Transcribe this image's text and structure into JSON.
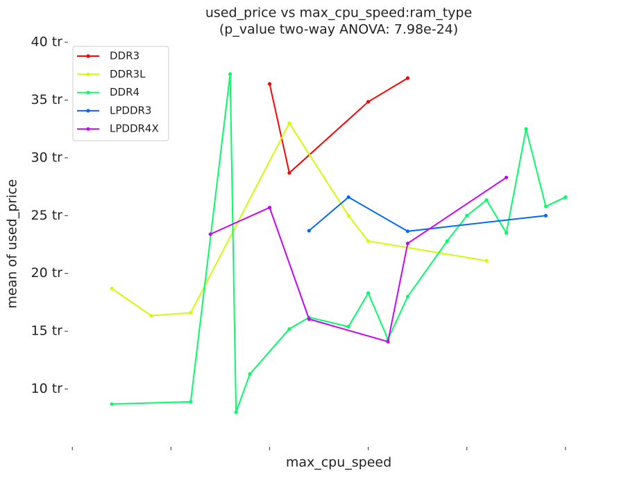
{
  "chart_data": {
    "type": "line",
    "title": "used_price vs max_cpu_speed:ram_type",
    "subtitle": "(p_value two-way ANOVA: 7.98e-24)",
    "x_label": "max_cpu_speed",
    "y_label": "mean of used_price",
    "xlim": [
      -0.1,
      5.1
    ],
    "xticks": [
      0,
      1,
      2,
      3,
      4,
      5
    ],
    "ylim": [
      5,
      40
    ],
    "yticks": [
      {
        "value": 10,
        "label": "10 tr"
      },
      {
        "value": 15,
        "label": "15 tr"
      },
      {
        "value": 20,
        "label": "20 tr"
      },
      {
        "value": 25,
        "label": "25 tr"
      },
      {
        "value": 30,
        "label": "30 tr"
      },
      {
        "value": 35,
        "label": "35 tr"
      },
      {
        "value": 40,
        "label": "40 tr"
      }
    ],
    "legend": "upper left",
    "series": [
      {
        "name": "DDR3",
        "color": "#ff0000",
        "x": [
          2.0,
          2.2,
          3.0,
          3.4
        ],
        "values": [
          36.4,
          28.7,
          34.85,
          36.9
        ]
      },
      {
        "name": "DDR3L",
        "color": "#ccff00",
        "x": [
          0.4,
          0.8,
          1.2,
          2.2,
          2.8,
          3.0,
          4.2
        ],
        "values": [
          18.7,
          16.35,
          16.6,
          33.0,
          25.0,
          22.8,
          21.1
        ]
      },
      {
        "name": "DDR4",
        "color": "#00ff66",
        "x": [
          0.4,
          1.2,
          1.6,
          1.66,
          1.8,
          2.2,
          2.4,
          2.8,
          3.0,
          3.2,
          3.4,
          3.8,
          4.0,
          4.2,
          4.4,
          4.6,
          4.8,
          5.0
        ],
        "values": [
          8.7,
          8.9,
          37.25,
          8.0,
          11.3,
          15.2,
          16.2,
          15.4,
          18.3,
          14.3,
          18.0,
          22.8,
          25.0,
          26.35,
          23.5,
          32.5,
          25.8,
          26.6
        ]
      },
      {
        "name": "LPDDR3",
        "color": "#0066ff",
        "x": [
          2.4,
          2.8,
          3.4,
          4.8
        ],
        "values": [
          23.7,
          26.6,
          23.65,
          25.0
        ]
      },
      {
        "name": "LPDDR4X",
        "color": "#cc00ff",
        "x": [
          1.4,
          2.0,
          2.4,
          3.2,
          3.4,
          4.4
        ],
        "values": [
          23.4,
          25.7,
          16.05,
          14.1,
          22.6,
          28.3
        ]
      }
    ]
  }
}
